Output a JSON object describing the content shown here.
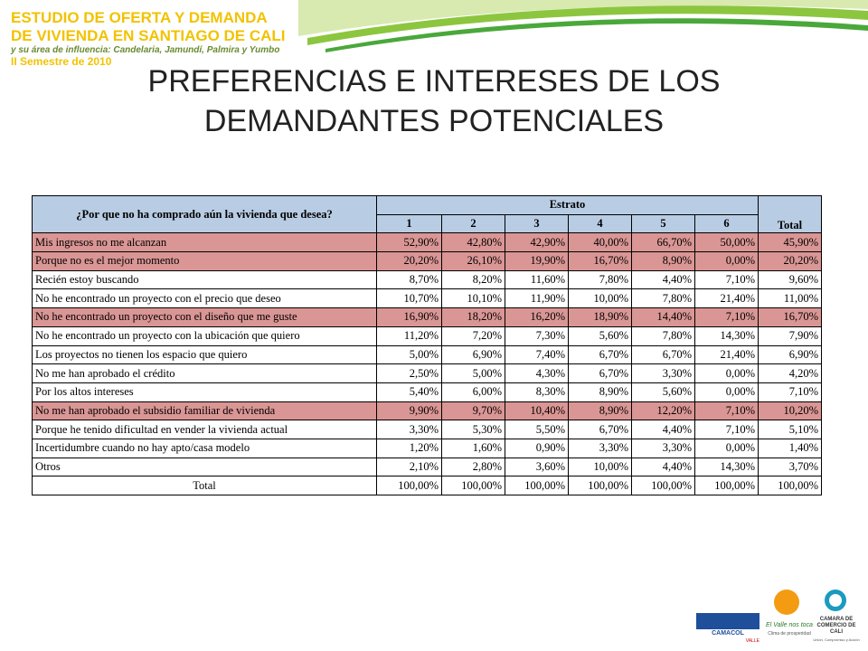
{
  "header": {
    "line1": "ESTUDIO DE OFERTA Y DEMANDA",
    "line2": "DE VIVIENDA EN SANTIAGO DE CALI",
    "line3": "y su área de influencia: Candelaria, Jamundí, Palmira y Yumbo",
    "line4": "II Semestre de 2010"
  },
  "title": {
    "line1": "PREFERENCIAS E INTERESES DE LOS",
    "line2": "DEMANDANTES POTENCIALES"
  },
  "table": {
    "question": "¿Por que no ha comprado aún la vivienda que desea?",
    "group": "Estrato",
    "columns": [
      "1",
      "2",
      "3",
      "4",
      "5",
      "6",
      "Total"
    ],
    "highlighted_rows": [
      0,
      1,
      4,
      9
    ],
    "rows": [
      [
        "Mis ingresos no me alcanzan",
        "52,90%",
        "42,80%",
        "42,90%",
        "40,00%",
        "66,70%",
        "50,00%",
        "45,90%"
      ],
      [
        "Porque no es el mejor momento",
        "20,20%",
        "26,10%",
        "19,90%",
        "16,70%",
        "8,90%",
        "0,00%",
        "20,20%"
      ],
      [
        "Recién estoy buscando",
        "8,70%",
        "8,20%",
        "11,60%",
        "7,80%",
        "4,40%",
        "7,10%",
        "9,60%"
      ],
      [
        "No he encontrado un proyecto con el precio que deseo",
        "10,70%",
        "10,10%",
        "11,90%",
        "10,00%",
        "7,80%",
        "21,40%",
        "11,00%"
      ],
      [
        "No he encontrado un proyecto con el diseño que me guste",
        "16,90%",
        "18,20%",
        "16,20%",
        "18,90%",
        "14,40%",
        "7,10%",
        "16,70%"
      ],
      [
        "No he encontrado un proyecto con la ubicación que quiero",
        "11,20%",
        "7,20%",
        "7,30%",
        "5,60%",
        "7,80%",
        "14,30%",
        "7,90%"
      ],
      [
        "Los proyectos no tienen los espacio que quiero",
        "5,00%",
        "6,90%",
        "7,40%",
        "6,70%",
        "6,70%",
        "21,40%",
        "6,90%"
      ],
      [
        "No me han aprobado el crédito",
        "2,50%",
        "5,00%",
        "4,30%",
        "6,70%",
        "3,30%",
        "0,00%",
        "4,20%"
      ],
      [
        "Por los altos intereses",
        "5,40%",
        "6,00%",
        "8,30%",
        "8,90%",
        "5,60%",
        "0,00%",
        "7,10%"
      ],
      [
        "No me han aprobado el subsidio familiar de vivienda",
        "9,90%",
        "9,70%",
        "10,40%",
        "8,90%",
        "12,20%",
        "7,10%",
        "10,20%"
      ],
      [
        "Porque he tenido dificultad en vender la vivienda actual",
        "3,30%",
        "5,30%",
        "5,50%",
        "6,70%",
        "4,40%",
        "7,10%",
        "5,10%"
      ],
      [
        "Incertidumbre cuando no hay apto/casa modelo",
        "1,20%",
        "1,60%",
        "0,90%",
        "3,30%",
        "3,30%",
        "0,00%",
        "1,40%"
      ],
      [
        "Otros",
        "2,10%",
        "2,80%",
        "3,60%",
        "10,00%",
        "4,40%",
        "14,30%",
        "3,70%"
      ],
      [
        "Total",
        "100,00%",
        "100,00%",
        "100,00%",
        "100,00%",
        "100,00%",
        "100,00%",
        "100,00%"
      ]
    ]
  },
  "logos": {
    "camacol": "CAMACOL",
    "camacol_sub": "VALLE",
    "valle": "El Valle nos toca",
    "valle_sub": "Clima de prosperidad",
    "camara": "CAMARA DE COMERCIO DE CALI",
    "camara_sub": "Unión, Compromiso y Acción"
  }
}
